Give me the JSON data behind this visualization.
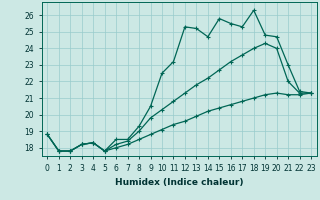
{
  "xlabel": "Humidex (Indice chaleur)",
  "ylabel": "",
  "background_color": "#cce8e4",
  "grid_color": "#99cccc",
  "line_color": "#006655",
  "x_values": [
    0,
    1,
    2,
    3,
    4,
    5,
    6,
    7,
    8,
    9,
    10,
    11,
    12,
    13,
    14,
    15,
    16,
    17,
    18,
    19,
    20,
    21,
    22,
    23
  ],
  "line1_y": [
    18.8,
    17.8,
    17.8,
    18.2,
    18.3,
    17.8,
    18.5,
    18.5,
    19.3,
    20.5,
    22.5,
    23.2,
    25.3,
    25.2,
    24.7,
    25.8,
    25.5,
    25.3,
    26.3,
    24.8,
    24.7,
    23.0,
    21.4,
    21.3
  ],
  "line2_y": [
    18.8,
    17.8,
    17.8,
    18.2,
    18.3,
    17.8,
    18.2,
    18.4,
    19.0,
    19.8,
    20.3,
    20.8,
    21.3,
    21.8,
    22.2,
    22.7,
    23.2,
    23.6,
    24.0,
    24.3,
    24.0,
    22.0,
    21.3,
    21.3
  ],
  "line3_y": [
    18.8,
    17.8,
    17.8,
    18.2,
    18.3,
    17.8,
    18.0,
    18.2,
    18.5,
    18.8,
    19.1,
    19.4,
    19.6,
    19.9,
    20.2,
    20.4,
    20.6,
    20.8,
    21.0,
    21.2,
    21.3,
    21.2,
    21.2,
    21.3
  ],
  "xlim": [
    -0.5,
    23.5
  ],
  "ylim": [
    17.5,
    26.8
  ],
  "yticks": [
    18,
    19,
    20,
    21,
    22,
    23,
    24,
    25,
    26
  ],
  "xtick_labels": [
    "0",
    "1",
    "2",
    "3",
    "4",
    "5",
    "6",
    "7",
    "8",
    "9",
    "10",
    "11",
    "12",
    "13",
    "14",
    "15",
    "16",
    "17",
    "18",
    "19",
    "20",
    "21",
    "22",
    "23"
  ]
}
